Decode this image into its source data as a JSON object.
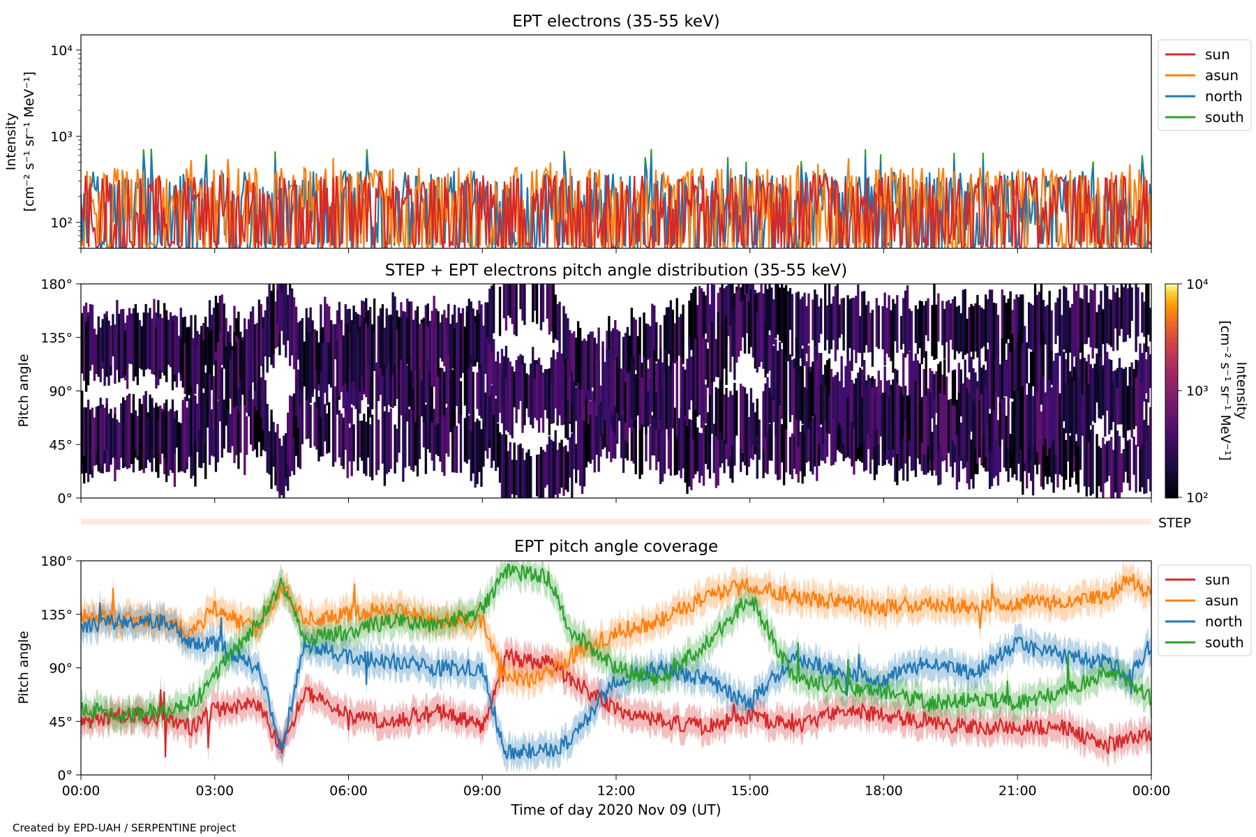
{
  "figure": {
    "credit": "Created by EPD-UAH / SERPENTINE project",
    "xlabel": "Time of day 2020 Nov 09 (UT)",
    "x_ticks": [
      "00:00",
      "03:00",
      "06:00",
      "09:00",
      "12:00",
      "15:00",
      "18:00",
      "21:00",
      "00:00"
    ],
    "x_range_hours": [
      0,
      24
    ]
  },
  "series_colors": {
    "sun": "#d62728",
    "asun": "#ff7f0e",
    "north": "#1f77b4",
    "south": "#2ca02c"
  },
  "chart_data": [
    {
      "type": "line",
      "title": "EPT electrons (35-55 keV)",
      "ylabel_line1": "Intensity",
      "ylabel_line2": "[cm⁻² s⁻¹ sr⁻¹ MeV⁻¹]",
      "yscale": "log",
      "ylim": [
        50,
        15000
      ],
      "y_ticks": [
        {
          "value": 100,
          "label": "10²"
        },
        {
          "value": 1000,
          "label": "10³"
        },
        {
          "value": 10000,
          "label": "10⁴"
        }
      ],
      "legend": "top-right",
      "series": [
        {
          "name": "sun",
          "baseline": 110,
          "typical_peak": 300,
          "max": 350
        },
        {
          "name": "asun",
          "baseline": 170,
          "typical_peak": 350,
          "max": 600
        },
        {
          "name": "north",
          "baseline": 150,
          "typical_peak": 320,
          "max": 600
        },
        {
          "name": "south",
          "baseline": 140,
          "typical_peak": 320,
          "max": 720
        }
      ]
    },
    {
      "type": "heatmap",
      "title": "STEP + EPT electrons pitch angle distribution (35-55 keV)",
      "ylabel": "Pitch angle",
      "ylim": [
        0,
        180
      ],
      "y_ticks": [
        "0°",
        "45°",
        "90°",
        "135°",
        "180°"
      ],
      "colorbar": {
        "label_line1": "Intensity",
        "label_line2": "[cm⁻² s⁻¹ sr⁻¹ MeV⁻¹]",
        "scale": "log",
        "range": [
          100,
          10000
        ],
        "ticks": [
          "10²",
          "10³",
          "10⁴"
        ]
      },
      "step_label": "STEP",
      "typical_intensity": 200
    },
    {
      "type": "line",
      "title": "EPT pitch angle coverage",
      "ylabel": "Pitch angle",
      "ylim": [
        0,
        180
      ],
      "y_ticks": [
        "0°",
        "45°",
        "90°",
        "135°",
        "180°"
      ],
      "legend": "top-right",
      "x": [
        0,
        1,
        2,
        2.5,
        3,
        4,
        4.5,
        5,
        6,
        7,
        8,
        9,
        9.5,
        10,
        10.5,
        11,
        12,
        13,
        14,
        15,
        16,
        17,
        18,
        19,
        20,
        21,
        22,
        23,
        23.5,
        24
      ],
      "series": [
        {
          "name": "sun",
          "values": [
            45,
            50,
            48,
            40,
            55,
            60,
            20,
            70,
            50,
            45,
            55,
            40,
            100,
            95,
            95,
            80,
            55,
            45,
            40,
            50,
            40,
            55,
            50,
            45,
            40,
            40,
            40,
            25,
            30,
            35
          ]
        },
        {
          "name": "asun",
          "values": [
            135,
            130,
            130,
            120,
            140,
            120,
            160,
            130,
            135,
            140,
            130,
            130,
            85,
            80,
            85,
            100,
            120,
            130,
            150,
            160,
            150,
            145,
            140,
            145,
            140,
            145,
            145,
            150,
            165,
            150
          ]
        },
        {
          "name": "north",
          "values": [
            125,
            130,
            128,
            110,
            110,
            90,
            20,
            110,
            100,
            95,
            90,
            90,
            20,
            20,
            20,
            30,
            80,
            90,
            80,
            60,
            100,
            85,
            80,
            95,
            85,
            110,
            100,
            95,
            85,
            110
          ]
        },
        {
          "name": "south",
          "values": [
            55,
            50,
            55,
            60,
            85,
            130,
            160,
            115,
            120,
            130,
            125,
            140,
            170,
            170,
            165,
            120,
            90,
            80,
            110,
            150,
            80,
            75,
            70,
            60,
            65,
            60,
            70,
            85,
            80,
            65
          ]
        }
      ],
      "band_halfwidth_deg": 12
    }
  ]
}
